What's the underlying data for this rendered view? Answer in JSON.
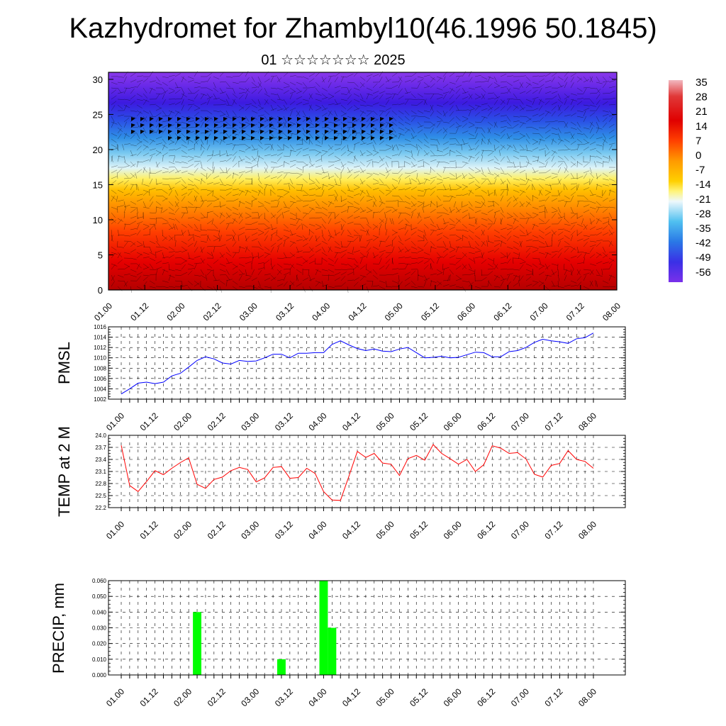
{
  "title": "Kazhydromet for Zhambyl10(46.1996 50.1845)",
  "subtitle": "01 ☆☆☆☆☆☆☆ 2025",
  "colors": {
    "pmsl_line": "#0000ff",
    "temp_line": "#ff0000",
    "precip_bar": "#00ff00"
  },
  "time_ticks": [
    "01.00",
    "01.12",
    "02.00",
    "02.12",
    "03.00",
    "03.12",
    "04.00",
    "04.12",
    "05.00",
    "05.12",
    "06.00",
    "06.12",
    "07.00",
    "07.12",
    "08.00"
  ],
  "chart_data": [
    {
      "type": "heatmap",
      "name": "vertical-temperature-wind-section",
      "x_ticks": [
        "01.00",
        "01.12",
        "02.00",
        "02.12",
        "03.00",
        "03.12",
        "04.00",
        "04.12",
        "05.00",
        "05.12",
        "06.00",
        "06.12",
        "07.00",
        "07.12",
        "08.00"
      ],
      "y_ticks": [
        0,
        5,
        10,
        15,
        20,
        25,
        30
      ],
      "ylim": [
        0,
        31
      ],
      "colorbar_labels": [
        "35",
        "28",
        "21",
        "14",
        "7",
        "0",
        "-7",
        "-14",
        "-21",
        "-28",
        "-35",
        "-42",
        "-49",
        "-56"
      ],
      "wind_barbs": true
    },
    {
      "type": "line",
      "ylabel": "PMSL",
      "x_ticks": [
        "01.00",
        "01.12",
        "02.00",
        "02.12",
        "03.00",
        "03.12",
        "04.00",
        "04.12",
        "05.00",
        "05.12",
        "06.00",
        "06.12",
        "07.00",
        "07.12",
        "08.00"
      ],
      "y_ticks": [
        "1002",
        "1004",
        "1006",
        "1008",
        "1010",
        "1012",
        "1014",
        "1016"
      ],
      "ylim": [
        1002,
        1016
      ],
      "step_hours": 3,
      "values": [
        1003.0,
        1004.0,
        1005.1,
        1005.3,
        1005.0,
        1005.3,
        1006.5,
        1007.0,
        1008.2,
        1009.5,
        1010.2,
        1009.8,
        1009.0,
        1008.8,
        1009.5,
        1009.3,
        1009.4,
        1010.0,
        1010.7,
        1010.7,
        1010.0,
        1010.9,
        1010.9,
        1011.0,
        1011.0,
        1012.6,
        1013.3,
        1012.5,
        1011.8,
        1011.4,
        1011.7,
        1011.3,
        1011.2,
        1011.7,
        1012.0,
        1011.0,
        1010.0,
        1010.1,
        1010.3,
        1010.0,
        1010.1,
        1010.6,
        1011.1,
        1011.0,
        1010.2,
        1010.2,
        1011.2,
        1011.4,
        1012.0,
        1013.0,
        1013.6,
        1013.3,
        1013.1,
        1012.8,
        1013.7,
        1013.9,
        1014.8
      ]
    },
    {
      "type": "line",
      "ylabel": "TEMP at 2 M",
      "x_ticks": [
        "01.00",
        "01.12",
        "02.00",
        "02.12",
        "03.00",
        "03.12",
        "04.00",
        "04.12",
        "05.00",
        "05.12",
        "06.00",
        "06.12",
        "07.00",
        "07.12",
        "08.00"
      ],
      "y_ticks": [
        "22.2",
        "22.5",
        "22.8",
        "23.1",
        "23.4",
        "23.7",
        "24.0"
      ],
      "ylim": [
        22.2,
        24.0
      ],
      "step_hours": 3,
      "values": [
        23.75,
        22.75,
        22.6,
        22.85,
        23.12,
        23.02,
        23.18,
        23.32,
        23.44,
        22.78,
        22.68,
        22.9,
        22.96,
        23.12,
        23.2,
        23.15,
        22.84,
        22.94,
        23.2,
        23.22,
        22.93,
        22.95,
        23.18,
        23.05,
        22.6,
        22.39,
        22.38,
        22.98,
        23.6,
        23.45,
        23.55,
        23.31,
        23.28,
        23.0,
        23.42,
        23.5,
        23.38,
        23.77,
        23.55,
        23.42,
        23.28,
        23.4,
        23.1,
        23.27,
        23.74,
        23.68,
        23.55,
        23.57,
        23.41,
        23.03,
        22.96,
        23.25,
        23.3,
        23.62,
        23.4,
        23.35,
        23.18
      ]
    },
    {
      "type": "bar",
      "ylabel": "PRECIP, mm",
      "x_ticks": [
        "01.00",
        "01.12",
        "02.00",
        "02.12",
        "03.00",
        "03.12",
        "04.00",
        "04.12",
        "05.00",
        "05.12",
        "06.00",
        "06.12",
        "07.00",
        "07.12",
        "08.00"
      ],
      "y_ticks": [
        "0.000",
        "0.010",
        "0.020",
        "0.030",
        "0.040",
        "0.050",
        "0.060"
      ],
      "ylim": [
        0,
        0.06
      ],
      "step_hours": 3,
      "bars": [
        {
          "x": "02.03",
          "value": 0.04
        },
        {
          "x": "03.09",
          "value": 0.01
        },
        {
          "x": "04.00",
          "value": 0.06
        },
        {
          "x": "04.03",
          "value": 0.03
        }
      ]
    }
  ]
}
